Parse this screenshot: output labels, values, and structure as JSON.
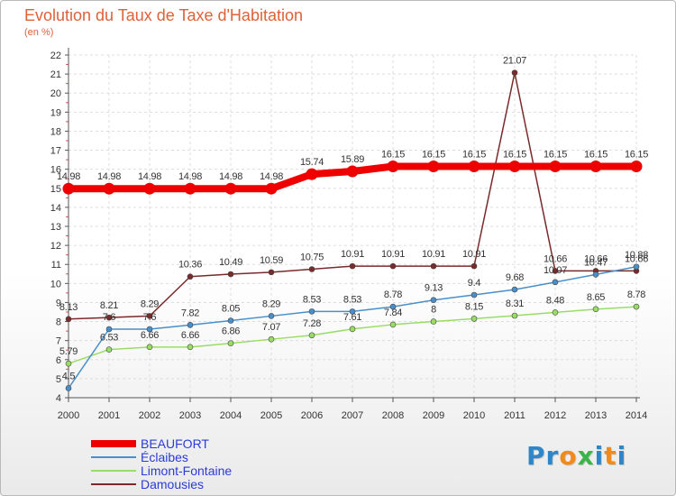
{
  "chart_data": {
    "type": "line",
    "title": "Evolution du Taux de Taxe d'Habitation",
    "subtitle": "(en %)",
    "x": [
      "2000",
      "2001",
      "2002",
      "2003",
      "2004",
      "2005",
      "2006",
      "2007",
      "2008",
      "2009",
      "2010",
      "2011",
      "2012",
      "2013",
      "2014"
    ],
    "ylim": [
      4,
      22
    ],
    "yticks": [
      4,
      5,
      6,
      7,
      8,
      9,
      10,
      11,
      12,
      13,
      14,
      15,
      16,
      17,
      18,
      19,
      20,
      21,
      22
    ],
    "grid": true,
    "legend_position": "bottom-left",
    "series": [
      {
        "name": "BEAUFORT",
        "color": "#ee0000",
        "values": [
          14.98,
          14.98,
          14.98,
          14.98,
          14.98,
          14.98,
          15.74,
          15.89,
          16.15,
          16.15,
          16.15,
          16.15,
          16.15,
          16.15,
          16.15
        ],
        "labels": [
          "14.98",
          "14.98",
          "14.98",
          "14.98",
          "14.98",
          "14.98",
          "15.74",
          "15.89",
          "16.15",
          "16.15",
          "16.15",
          "16.15",
          "16.15",
          "16.15",
          "16.15"
        ]
      },
      {
        "name": "Éclaibes",
        "color": "#4a8fc9",
        "values": [
          4.5,
          7.6,
          7.6,
          7.82,
          8.05,
          8.29,
          8.53,
          8.53,
          8.78,
          9.13,
          9.4,
          9.68,
          10.07,
          10.47,
          10.88
        ],
        "labels": [
          "4.5",
          "7.6",
          "7.6",
          "7.82",
          "8.05",
          "8.29",
          "8.53",
          "8.53",
          "8.78",
          "9.13",
          "9.4",
          "9.68",
          "10.07",
          "10.47",
          "10.88"
        ]
      },
      {
        "name": "Limont-Fontaine",
        "color": "#99dd66",
        "values": [
          5.79,
          6.53,
          6.66,
          6.66,
          6.86,
          7.07,
          7.28,
          7.61,
          7.84,
          8,
          8.15,
          8.31,
          8.48,
          8.65,
          8.78
        ],
        "labels": [
          "5.79",
          "6.53",
          "6.66",
          "6.66",
          "6.86",
          "7.07",
          "7.28",
          "7.61",
          "7.84",
          "8",
          "8.15",
          "8.31",
          "8.48",
          "8.65",
          "8.78"
        ]
      },
      {
        "name": "Damousies",
        "color": "#7a2a2a",
        "values": [
          8.13,
          8.21,
          8.29,
          10.36,
          10.49,
          10.59,
          10.75,
          10.91,
          10.91,
          10.91,
          10.91,
          21.07,
          10.66,
          10.66,
          10.66
        ],
        "labels": [
          "8.13",
          "8.21",
          "8.29",
          "10.36",
          "10.49",
          "10.59",
          "10.75",
          "10.91",
          "10.91",
          "10.91",
          "10.91",
          "21.07",
          "10.66",
          "10.66",
          "10.66"
        ]
      }
    ]
  },
  "brand": {
    "letters": [
      {
        "ch": "P",
        "color": "#2e86c8"
      },
      {
        "ch": "r",
        "color": "#2e86c8"
      },
      {
        "ch": "o",
        "color": "#f08a1c"
      },
      {
        "ch": "x",
        "color": "#3bb54a"
      },
      {
        "ch": "i",
        "color": "#2e86c8"
      },
      {
        "ch": "t",
        "color": "#f08a1c"
      },
      {
        "ch": "i",
        "color": "#2e86c8"
      }
    ]
  }
}
